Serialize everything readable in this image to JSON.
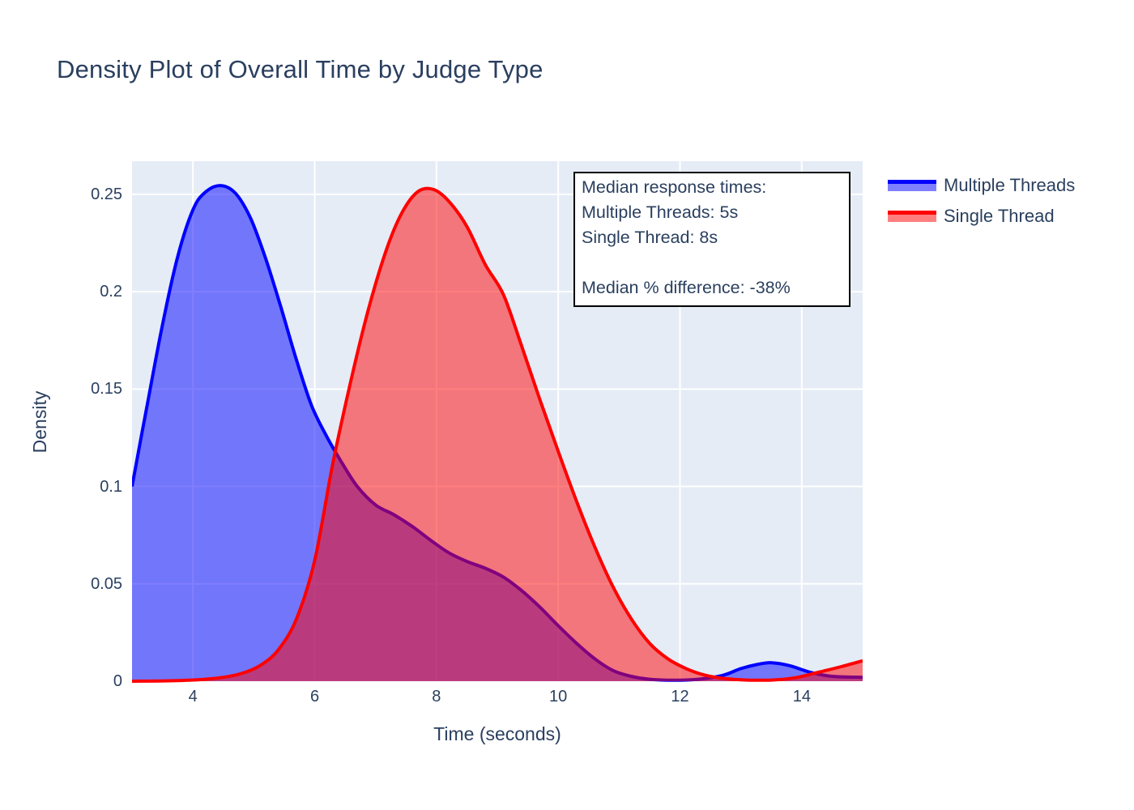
{
  "chart_data": {
    "type": "area",
    "subtype": "kde-density",
    "title": "Density Plot of Overall Time by Judge Type",
    "xlabel": "Time (seconds)",
    "ylabel": "Density",
    "xlim": [
      3,
      15
    ],
    "ylim": [
      0,
      0.267
    ],
    "grid": true,
    "plot_bg": "#e5ecf6",
    "grid_color": "#ffffff",
    "text_color": "#2a3f5f",
    "legend_position": "outside-top-right",
    "x_ticks": [
      4,
      6,
      8,
      10,
      12,
      14
    ],
    "x_tick_labels": [
      "4",
      "6",
      "8",
      "10",
      "12",
      "14"
    ],
    "y_ticks": [
      0,
      0.05,
      0.1,
      0.15,
      0.2,
      0.25
    ],
    "y_tick_labels": [
      "0",
      "0.05",
      "0.1",
      "0.15",
      "0.2",
      "0.25"
    ],
    "series": [
      {
        "name": "Multiple Threads",
        "line_color": "#0000ff",
        "fill_color": "rgba(0,0,255,0.5)",
        "x": [
          3,
          3.25,
          3.5,
          3.75,
          4,
          4.2,
          4.45,
          4.7,
          4.95,
          5.2,
          5.45,
          5.7,
          5.95,
          6.2,
          6.45,
          6.7,
          7,
          7.3,
          7.6,
          7.9,
          8.2,
          8.5,
          8.8,
          9.1,
          9.4,
          9.7,
          10,
          10.3,
          10.6,
          10.9,
          11.2,
          11.5,
          11.9,
          12.3,
          12.7,
          13,
          13.25,
          13.5,
          13.8,
          14.15,
          14.5,
          15
        ],
        "y": [
          0.1,
          0.142,
          0.183,
          0.218,
          0.242,
          0.251,
          0.2545,
          0.2505,
          0.2375,
          0.2165,
          0.1915,
          0.165,
          0.1415,
          0.1255,
          0.112,
          0.1,
          0.0905,
          0.0855,
          0.0795,
          0.0725,
          0.066,
          0.0615,
          0.058,
          0.0535,
          0.0465,
          0.038,
          0.0285,
          0.0195,
          0.0115,
          0.0055,
          0.0025,
          0.001,
          0.0005,
          0.001,
          0.003,
          0.0065,
          0.0085,
          0.0095,
          0.008,
          0.0045,
          0.0025,
          0.002
        ]
      },
      {
        "name": "Single Thread",
        "line_color": "#ff0000",
        "fill_color": "rgba(255,0,0,0.5)",
        "x": [
          3,
          3.6,
          4.1,
          4.5,
          4.8,
          5.1,
          5.4,
          5.7,
          6,
          6.3,
          6.6,
          6.9,
          7.2,
          7.45,
          7.7,
          7.95,
          8.2,
          8.5,
          8.8,
          9.1,
          9.4,
          9.7,
          10,
          10.3,
          10.6,
          10.9,
          11.2,
          11.5,
          11.8,
          12.1,
          12.4,
          12.75,
          13.1,
          13.5,
          13.9,
          14.3,
          14.65,
          15
        ],
        "y": [
          0,
          0.0002,
          0.0008,
          0.002,
          0.004,
          0.008,
          0.016,
          0.032,
          0.062,
          0.112,
          0.155,
          0.193,
          0.2235,
          0.2415,
          0.2515,
          0.2525,
          0.2465,
          0.2335,
          0.214,
          0.1985,
          0.172,
          0.1445,
          0.118,
          0.0925,
          0.069,
          0.0485,
          0.032,
          0.0195,
          0.0115,
          0.0065,
          0.0032,
          0.0013,
          0.0006,
          0.0006,
          0.0018,
          0.0048,
          0.0075,
          0.0105
        ]
      }
    ],
    "annotation": {
      "lines": [
        "Median response times:",
        "Multiple Threads: 5s",
        "Single Thread: 8s",
        "",
        "Median % difference: -38%"
      ]
    }
  }
}
